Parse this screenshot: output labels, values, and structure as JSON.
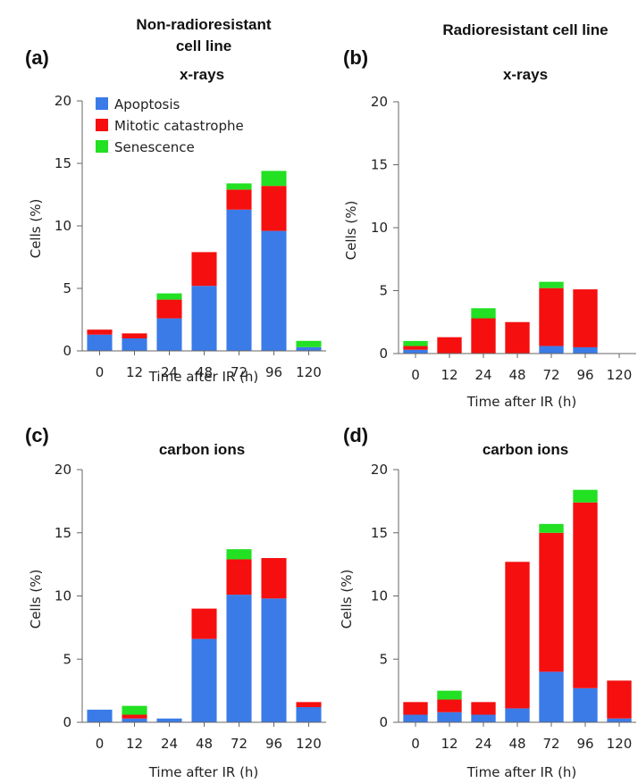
{
  "column_headers": {
    "left_line1": "Non-radioresistant",
    "left_line2": "cell line",
    "right": "Radioresistant cell line"
  },
  "colors": {
    "Apoptosis": "#3a7be8",
    "Mitotic catastrophe": "#f50f0f",
    "Senescence": "#22e022"
  },
  "legend": [
    "Apoptosis",
    "Mitotic catastrophe",
    "Senescence"
  ],
  "chart_data": [
    {
      "type": "bar",
      "stacked": true,
      "panel_label": "(a)",
      "title": "x-rays",
      "xlabel": "Time after IR (h)",
      "ylabel": "Cells (%)",
      "ylim": [
        0,
        20
      ],
      "yticks": [
        0,
        5,
        10,
        15,
        20
      ],
      "categories": [
        "0",
        "12",
        "24",
        "48",
        "72",
        "96",
        "120"
      ],
      "series": [
        {
          "name": "Apoptosis",
          "values": [
            1.3,
            1.0,
            2.6,
            5.2,
            11.3,
            9.6,
            0.3
          ]
        },
        {
          "name": "Mitotic catastrophe",
          "values": [
            0.4,
            0.4,
            1.5,
            2.7,
            1.6,
            3.6,
            0.0
          ]
        },
        {
          "name": "Senescence",
          "values": [
            0.0,
            0.0,
            0.5,
            0.0,
            0.5,
            1.2,
            0.5
          ]
        }
      ],
      "legend_position": "top-left"
    },
    {
      "type": "bar",
      "stacked": true,
      "panel_label": "(b)",
      "title": "x-rays",
      "xlabel": "Time after IR (h)",
      "ylabel": "Cells (%)",
      "ylim": [
        0,
        20
      ],
      "yticks": [
        0,
        5,
        10,
        15,
        20
      ],
      "categories": [
        "0",
        "12",
        "24",
        "48",
        "72",
        "96",
        "120"
      ],
      "series": [
        {
          "name": "Apoptosis",
          "values": [
            0.3,
            0.0,
            0.0,
            0.0,
            0.6,
            0.5,
            0.0
          ]
        },
        {
          "name": "Mitotic catastrophe",
          "values": [
            0.3,
            1.3,
            2.8,
            2.5,
            4.6,
            4.6,
            0.0
          ]
        },
        {
          "name": "Senescence",
          "values": [
            0.4,
            0.0,
            0.8,
            0.0,
            0.5,
            0.0,
            0.0
          ]
        }
      ]
    },
    {
      "type": "bar",
      "stacked": true,
      "panel_label": "(c)",
      "title": "carbon ions",
      "xlabel": "Time after IR (h)",
      "ylabel": "Cells (%)",
      "ylim": [
        0,
        20
      ],
      "yticks": [
        0,
        5,
        10,
        15,
        20
      ],
      "categories": [
        "0",
        "12",
        "24",
        "48",
        "72",
        "96",
        "120"
      ],
      "series": [
        {
          "name": "Apoptosis",
          "values": [
            1.0,
            0.3,
            0.3,
            6.6,
            10.1,
            9.8,
            1.2
          ]
        },
        {
          "name": "Mitotic catastrophe",
          "values": [
            0.0,
            0.3,
            0.0,
            2.4,
            2.8,
            3.2,
            0.4
          ]
        },
        {
          "name": "Senescence",
          "values": [
            0.0,
            0.7,
            0.0,
            0.0,
            0.8,
            0.0,
            0.0
          ]
        }
      ]
    },
    {
      "type": "bar",
      "stacked": true,
      "panel_label": "(d)",
      "title": "carbon ions",
      "xlabel": "Time after IR (h)",
      "ylabel": "Cells (%)",
      "ylim": [
        0,
        20
      ],
      "yticks": [
        0,
        5,
        10,
        15,
        20
      ],
      "categories": [
        "0",
        "12",
        "24",
        "48",
        "72",
        "96",
        "120"
      ],
      "series": [
        {
          "name": "Apoptosis",
          "values": [
            0.6,
            0.8,
            0.6,
            1.1,
            4.0,
            2.7,
            0.3
          ]
        },
        {
          "name": "Mitotic catastrophe",
          "values": [
            1.0,
            1.0,
            1.0,
            11.6,
            11.0,
            14.7,
            3.0
          ]
        },
        {
          "name": "Senescence",
          "values": [
            0.0,
            0.7,
            0.0,
            0.0,
            0.7,
            1.0,
            0.0
          ]
        }
      ]
    }
  ]
}
